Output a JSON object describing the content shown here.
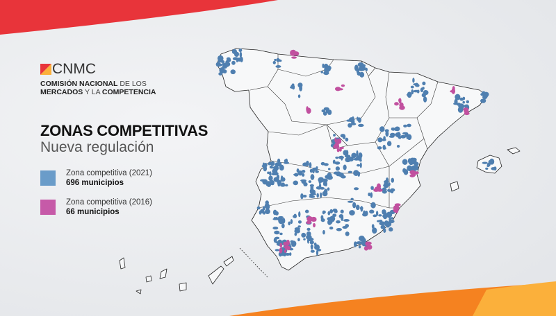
{
  "colors": {
    "zone_2021": "#5b8ec0",
    "zone_2016": "#c65aa8",
    "accent_red": "#e8343a",
    "accent_orange": "#f58220",
    "accent_yellow": "#fbb03b"
  },
  "logo": {
    "word": "CNMC",
    "line1_bold": "COMISIÓN NACIONAL",
    "line1_light": "DE LOS",
    "line2_bold": "MERCADOS",
    "line2_light": "Y LA",
    "line2_bold2": "COMPETENCIA"
  },
  "title": "ZONAS COMPETITIVAS",
  "subtitle": "Nueva regulación",
  "legend": [
    {
      "label": "Zona competitiva (2021)",
      "count": "696 municipios",
      "color": "#5b8ec0"
    },
    {
      "label": "Zona competitiva (2016)",
      "count": "66 municipios",
      "color": "#c65aa8"
    }
  ]
}
